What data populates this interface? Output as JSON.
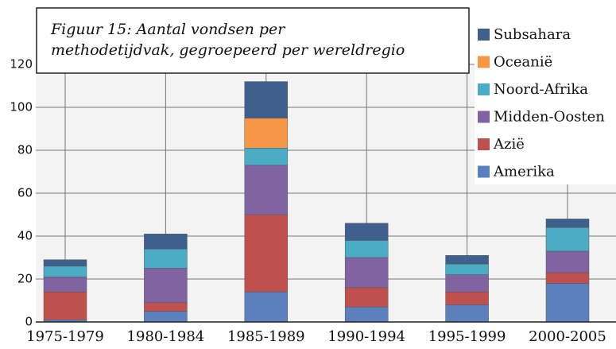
{
  "chart_data": {
    "type": "stacked_bar",
    "title": "Figuur 15: Aantal vondsen per methodetijdvak, gegroepeerd per wereldregio",
    "categories": [
      "1975-1979",
      "1980-1984",
      "1985-1989",
      "1990-1994",
      "1995-1999",
      "2000-2005"
    ],
    "series": [
      {
        "name": "Amerika",
        "color": "#5b80bd",
        "values": [
          1,
          5,
          14,
          7,
          8,
          18
        ]
      },
      {
        "name": "Azië",
        "color": "#c0504d",
        "values": [
          13,
          4,
          36,
          9,
          6,
          5
        ]
      },
      {
        "name": "Midden-Oosten",
        "color": "#8064a2",
        "values": [
          7,
          16,
          23,
          14,
          8,
          10
        ]
      },
      {
        "name": "Noord-Afrika",
        "color": "#4bacc6",
        "values": [
          5,
          9,
          8,
          8,
          5,
          11
        ]
      },
      {
        "name": "Oceanië",
        "color": "#f79646",
        "values": [
          0,
          0,
          14,
          0,
          0,
          0
        ]
      },
      {
        "name": "Subsahara",
        "color": "#3f5f8c",
        "values": [
          3,
          7,
          17,
          8,
          4,
          4
        ]
      }
    ],
    "ylim": [
      0,
      120
    ],
    "yticks": [
      0,
      20,
      40,
      60,
      80,
      100,
      120
    ],
    "grid": true
  }
}
